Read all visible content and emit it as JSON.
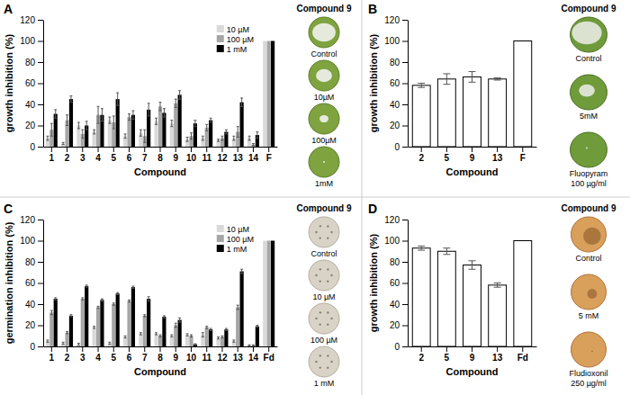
{
  "chart_data": [
    {
      "type": "bar",
      "title": "A",
      "x_label": "Compound",
      "y_label": "growth inhibition (%)",
      "categories": [
        "1",
        "2",
        "3",
        "4",
        "5",
        "6",
        "7",
        "8",
        "9",
        "10",
        "11",
        "12",
        "13",
        "14",
        "F"
      ],
      "series": [
        {
          "name": "10 µM",
          "color": "#d9d9d9",
          "values": [
            8,
            3,
            20,
            14,
            25,
            10,
            13,
            24,
            22,
            7,
            8,
            6,
            8,
            8,
            100
          ],
          "errors": [
            2,
            1,
            3,
            2,
            3,
            2,
            3,
            3,
            3,
            2,
            2,
            1,
            2,
            2,
            null
          ]
        },
        {
          "name": "100 µM",
          "color": "#a6a6a6",
          "values": [
            16,
            25,
            12,
            30,
            23,
            28,
            10,
            38,
            41,
            10,
            18,
            8,
            14,
            2,
            100
          ],
          "errors": [
            6,
            5,
            4,
            8,
            6,
            3,
            6,
            4,
            4,
            3,
            3,
            2,
            5,
            1,
            null
          ]
        },
        {
          "name": "1 mM",
          "color": "#000000",
          "values": [
            31,
            45,
            20,
            30,
            45,
            30,
            35,
            32,
            49,
            22,
            25,
            14,
            42,
            11,
            100
          ],
          "errors": [
            4,
            3,
            4,
            6,
            6,
            4,
            6,
            4,
            4,
            3,
            2,
            2,
            4,
            3,
            null
          ]
        }
      ],
      "ylim": [
        0,
        120
      ],
      "yticks": [
        0,
        20,
        40,
        60,
        80,
        100,
        120
      ],
      "legend": "upper right",
      "inset_title": "Compound 9",
      "inset_labels": [
        [
          "Control"
        ],
        [
          "10µM"
        ],
        [
          "100µM"
        ],
        [
          "1mM"
        ]
      ]
    },
    {
      "type": "bar",
      "title": "B",
      "x_label": "Compound",
      "y_label": "growth inhibition (%)",
      "categories": [
        "2",
        "5",
        "9",
        "13",
        "F"
      ],
      "series": [
        {
          "color": "#ffffff",
          "values": [
            58,
            64,
            66,
            64,
            100
          ],
          "errors": [
            2,
            5,
            5,
            1,
            null
          ]
        }
      ],
      "ylim": [
        0,
        120
      ],
      "yticks": [
        0,
        20,
        40,
        60,
        80,
        100,
        120
      ],
      "inset_title": "Compound 9",
      "inset_labels": [
        [
          "Control"
        ],
        [
          "5mM"
        ],
        [
          "Fluopyram",
          "100 µg/ml"
        ]
      ]
    },
    {
      "type": "bar",
      "title": "C",
      "x_label": "Compound",
      "y_label": "germination inhibition (%)",
      "categories": [
        "1",
        "2",
        "3",
        "4",
        "5",
        "6",
        "7",
        "8",
        "9",
        "10",
        "11",
        "12",
        "13",
        "14",
        "Fd"
      ],
      "series": [
        {
          "name": "10 µM",
          "color": "#d9d9d9",
          "values": [
            5,
            3,
            2,
            18,
            3,
            9,
            12,
            12,
            10,
            11,
            11,
            8,
            5,
            1,
            100
          ],
          "errors": [
            1,
            1,
            1,
            1,
            1,
            1,
            1,
            1,
            1,
            1,
            2,
            1,
            1,
            0.5,
            null
          ]
        },
        {
          "name": "100 µM",
          "color": "#a6a6a6",
          "values": [
            32,
            13,
            45,
            37,
            40,
            43,
            29,
            10,
            20,
            10,
            18,
            9,
            37,
            1,
            100
          ],
          "errors": [
            2,
            1,
            1,
            1,
            1,
            1,
            1,
            1,
            2,
            1,
            1,
            1,
            2,
            0.5,
            null
          ]
        },
        {
          "name": "1 mM",
          "color": "#000000",
          "values": [
            45,
            29,
            57,
            44,
            50,
            56,
            45,
            28,
            25,
            2,
            16,
            16,
            71,
            19,
            100
          ],
          "errors": [
            1,
            1,
            1,
            1,
            1,
            1,
            2,
            1,
            2,
            0.5,
            1,
            1,
            2,
            1,
            null
          ]
        }
      ],
      "ylim": [
        0,
        120
      ],
      "yticks": [
        0,
        20,
        40,
        60,
        80,
        100,
        120
      ],
      "legend": "upper right",
      "inset_title": "Compound 9",
      "inset_labels": [
        [
          "Control"
        ],
        [
          "10 µM"
        ],
        [
          "100 µM"
        ],
        [
          "1 mM"
        ]
      ]
    },
    {
      "type": "bar",
      "title": "D",
      "x_label": "Compound",
      "y_label": "growth inhibition (%)",
      "categories": [
        "2",
        "5",
        "9",
        "13",
        "Fd"
      ],
      "series": [
        {
          "color": "#ffffff",
          "values": [
            93,
            90,
            77,
            58,
            100
          ],
          "errors": [
            2,
            3,
            4,
            2,
            null
          ]
        }
      ],
      "ylim": [
        0,
        120
      ],
      "yticks": [
        0,
        20,
        40,
        60,
        80,
        100,
        120
      ],
      "inset_title": "Compound 9",
      "inset_labels": [
        [
          "Control"
        ],
        [
          "5 mM"
        ],
        [
          "Fludioxonil",
          "250 µg/ml"
        ]
      ]
    }
  ]
}
